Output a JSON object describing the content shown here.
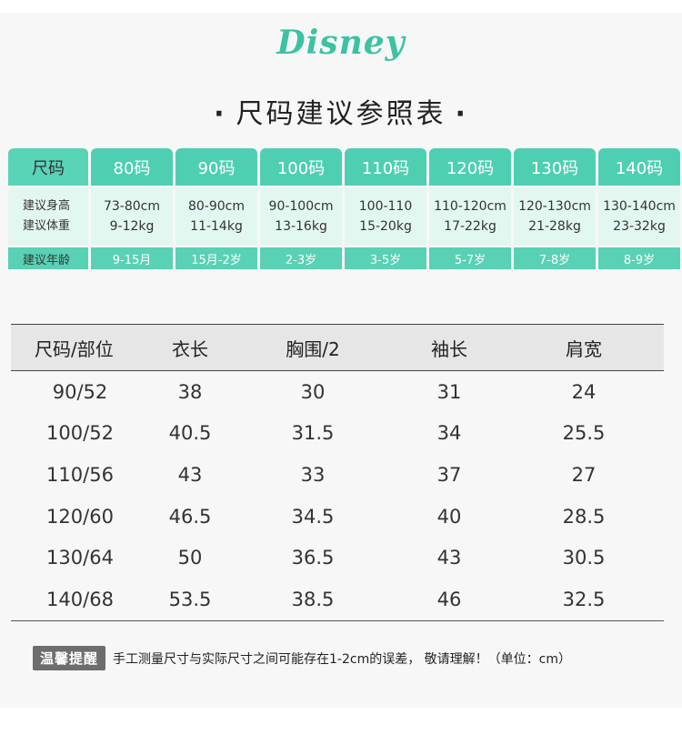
{
  "brand": {
    "logo_text": "Disney"
  },
  "title": {
    "dot_left": "·",
    "text": "尺码建议参照表",
    "dot_right": "·"
  },
  "suggestion": {
    "row_labels": {
      "header": "尺码",
      "height": "建议身高",
      "weight": "建议体重",
      "age": "建议年龄"
    },
    "sizes": [
      {
        "size": "80码",
        "height": "73-80cm",
        "weight": "9-12kg",
        "age": "9-15月"
      },
      {
        "size": "90码",
        "height": "80-90cm",
        "weight": "11-14kg",
        "age": "15月-2岁"
      },
      {
        "size": "100码",
        "height": "90-100cm",
        "weight": "13-16kg",
        "age": "2-3岁"
      },
      {
        "size": "110码",
        "height": "100-110",
        "weight": "15-20kg",
        "age": "3-5岁"
      },
      {
        "size": "120码",
        "height": "110-120cm",
        "weight": "17-22kg",
        "age": "5-7岁"
      },
      {
        "size": "130码",
        "height": "120-130cm",
        "weight": "21-28kg",
        "age": "7-8岁"
      },
      {
        "size": "140码",
        "height": "130-140cm",
        "weight": "23-32kg",
        "age": "8-9岁"
      }
    ]
  },
  "measurements": {
    "headers": [
      "尺码/部位",
      "衣长",
      "胸围/2",
      "袖长",
      "肩宽"
    ],
    "rows": [
      [
        "90/52",
        "38",
        "30",
        "31",
        "24"
      ],
      [
        "100/52",
        "40.5",
        "31.5",
        "34",
        "25.5"
      ],
      [
        "110/56",
        "43",
        "33",
        "37",
        "27"
      ],
      [
        "120/60",
        "46.5",
        "34.5",
        "40",
        "28.5"
      ],
      [
        "130/64",
        "50",
        "36.5",
        "43",
        "30.5"
      ],
      [
        "140/68",
        "53.5",
        "38.5",
        "46",
        "32.5"
      ]
    ]
  },
  "note": {
    "badge": "温馨提醒",
    "text": "手工测量尺寸与实际尺寸之间可能存在1-2cm的误差， 敬请理解！（单位：cm）"
  },
  "colors": {
    "accent": "#4fcfb2",
    "accent_light": "#e3f7f1",
    "logo": "#3cc2a3",
    "badge": "#6d6d6d"
  }
}
